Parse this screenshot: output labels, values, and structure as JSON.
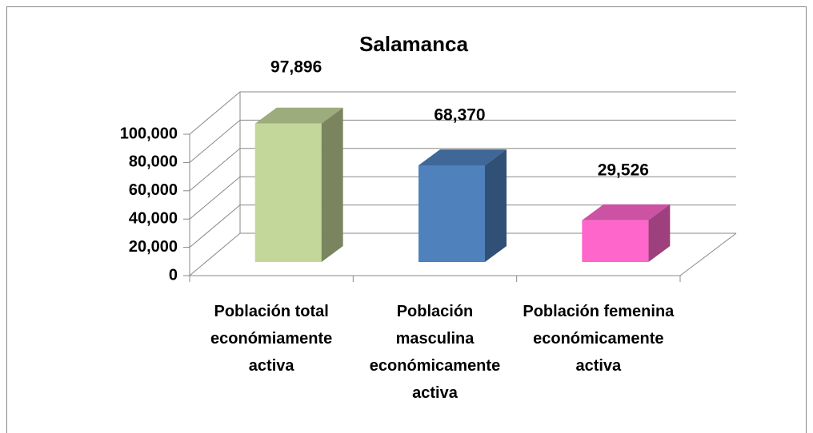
{
  "chart_data": {
    "type": "bar3d",
    "title": "Salamanca",
    "categories": [
      "Población total económiamente activa",
      "Población masculina económicamente activa",
      "Población femenina económicamente activa"
    ],
    "values": [
      97896,
      68370,
      29526
    ],
    "value_labels": [
      "97,896",
      "68,370",
      "29,526"
    ],
    "colors": [
      "#c4d79b",
      "#4f81bd",
      "#ff66cc"
    ],
    "ylim": [
      0,
      100000
    ],
    "yticks": [
      0,
      {
        "value": 20000,
        "label": "20,000"
      },
      {
        "value": 40000,
        "label": "40,000"
      },
      {
        "value": 60000,
        "label": "60,000"
      },
      {
        "value": 80000,
        "label": "80,000"
      },
      {
        "value": 100000,
        "label": "100,000"
      }
    ],
    "grid": true
  }
}
